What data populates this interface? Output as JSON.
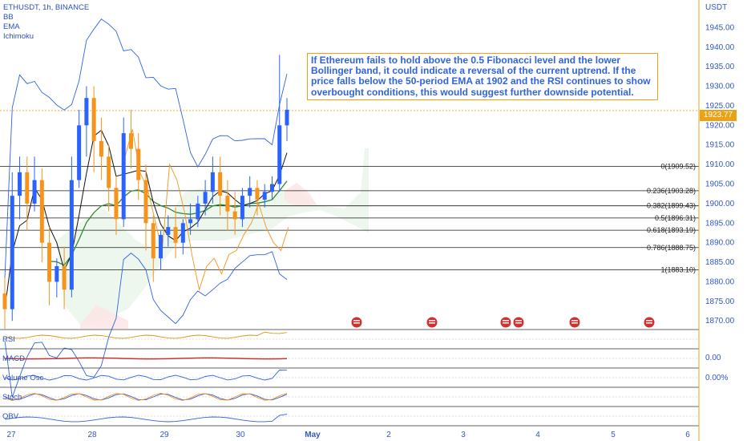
{
  "header": {
    "symbol": "ETHUSDT, 1h, BINANCE",
    "indicators": [
      "BB",
      "EMA",
      "Ichimoku"
    ]
  },
  "annotation": {
    "text": "If Ethereum fails to hold above the 0.5 Fibonacci level and the lower Bollinger band, it could indicate a reversal of the current uptrend. If the price falls below the 50-period EMA at 1902 and the RSI continues to show overbought conditions, this would suggest further downside potential."
  },
  "price_axis": {
    "unit": "USDT",
    "current_price": "1923.77"
  },
  "panes": {
    "rsi": "RSI",
    "macd": "MACD",
    "volume_osc": "Volume Osc",
    "stoch": "Stoch",
    "obv": "OBV"
  },
  "pane_values": {
    "macd": "0.00",
    "volume_osc": "0.00%"
  },
  "colors": {
    "up_candle": "#2962ff",
    "down_candle": "#f7931a",
    "fib_line": "#1a1a1a",
    "bollinger": "#2f63e0",
    "ema": "#2e8b2e",
    "ichimoku_conversion": "#111111",
    "ichimoku_lagging": "#f7931a",
    "accent": "#e8a317",
    "event_icon": "#d32f2f"
  },
  "chart_data": {
    "type": "candlestick",
    "title": "ETHUSDT, 1h, BINANCE",
    "y_axis": {
      "unit": "USDT",
      "range": [
        1868,
        1950
      ],
      "ticks": [
        "1945.00",
        "1940.00",
        "1935.00",
        "1930.00",
        "1925.00",
        "1920.00",
        "1915.00",
        "1910.00",
        "1905.00",
        "1900.00",
        "1895.00",
        "1890.00",
        "1885.00",
        "1880.00",
        "1875.00",
        "1870.00"
      ]
    },
    "x_axis": {
      "ticks": [
        {
          "label": "27",
          "bold": false
        },
        {
          "label": "28",
          "bold": false
        },
        {
          "label": "29",
          "bold": false
        },
        {
          "label": "30",
          "bold": false
        },
        {
          "label": "May",
          "bold": true
        },
        {
          "label": "2",
          "bold": false
        },
        {
          "label": "3",
          "bold": false
        },
        {
          "label": "4",
          "bold": false
        },
        {
          "label": "5",
          "bold": false
        },
        {
          "label": "6",
          "bold": false
        }
      ]
    },
    "fibonacci_levels": [
      {
        "label": "0(1909.52)",
        "value": 1909.52
      },
      {
        "label": "0.236(1903.28)",
        "value": 1903.28
      },
      {
        "label": "0.382(1899.43)",
        "value": 1899.43
      },
      {
        "label": "0.5(1896.31)",
        "value": 1896.31
      },
      {
        "label": "0.618(1893.19)",
        "value": 1893.19
      },
      {
        "label": "0.786(1888.75)",
        "value": 1888.75
      },
      {
        "label": "1(1883.10)",
        "value": 1883.1
      }
    ],
    "current_price": 1923.77,
    "candles": [
      {
        "o": 1877,
        "h": 1881,
        "c": 1873,
        "l": 1868
      },
      {
        "o": 1873,
        "h": 1908,
        "c": 1902,
        "l": 1870
      },
      {
        "o": 1902,
        "h": 1912,
        "c": 1908,
        "l": 1896
      },
      {
        "o": 1908,
        "h": 1912,
        "c": 1900,
        "l": 1893
      },
      {
        "o": 1900,
        "h": 1912,
        "c": 1906,
        "l": 1898
      },
      {
        "o": 1906,
        "h": 1909,
        "c": 1890,
        "l": 1885
      },
      {
        "o": 1890,
        "h": 1894,
        "c": 1880,
        "l": 1874
      },
      {
        "o": 1880,
        "h": 1886,
        "c": 1884,
        "l": 1876
      },
      {
        "o": 1884,
        "h": 1889,
        "c": 1878,
        "l": 1873
      },
      {
        "o": 1878,
        "h": 1912,
        "c": 1906,
        "l": 1876
      },
      {
        "o": 1906,
        "h": 1924,
        "c": 1920,
        "l": 1904
      },
      {
        "o": 1920,
        "h": 1930,
        "c": 1927,
        "l": 1912
      },
      {
        "o": 1927,
        "h": 1930,
        "c": 1916,
        "l": 1908
      },
      {
        "o": 1916,
        "h": 1922,
        "c": 1912,
        "l": 1906
      },
      {
        "o": 1912,
        "h": 1915,
        "c": 1904,
        "l": 1898
      },
      {
        "o": 1904,
        "h": 1907,
        "c": 1896,
        "l": 1892
      },
      {
        "o": 1896,
        "h": 1922,
        "c": 1918,
        "l": 1894
      },
      {
        "o": 1918,
        "h": 1924,
        "c": 1914,
        "l": 1909
      },
      {
        "o": 1914,
        "h": 1918,
        "c": 1906,
        "l": 1901
      },
      {
        "o": 1906,
        "h": 1910,
        "c": 1895,
        "l": 1888
      },
      {
        "o": 1895,
        "h": 1897,
        "c": 1886,
        "l": 1880
      },
      {
        "o": 1886,
        "h": 1893,
        "c": 1892,
        "l": 1883
      },
      {
        "o": 1892,
        "h": 1897,
        "c": 1894,
        "l": 1889
      },
      {
        "o": 1894,
        "h": 1899,
        "c": 1890,
        "l": 1886
      },
      {
        "o": 1890,
        "h": 1896,
        "c": 1895,
        "l": 1887
      },
      {
        "o": 1895,
        "h": 1900,
        "c": 1896,
        "l": 1892
      },
      {
        "o": 1896,
        "h": 1902,
        "c": 1900,
        "l": 1894
      },
      {
        "o": 1900,
        "h": 1906,
        "c": 1903,
        "l": 1897
      },
      {
        "o": 1903,
        "h": 1912,
        "c": 1908,
        "l": 1900
      },
      {
        "o": 1908,
        "h": 1912,
        "c": 1902,
        "l": 1897
      },
      {
        "o": 1902,
        "h": 1906,
        "c": 1898,
        "l": 1893
      },
      {
        "o": 1898,
        "h": 1903,
        "c": 1896,
        "l": 1892
      },
      {
        "o": 1896,
        "h": 1904,
        "c": 1902,
        "l": 1894
      },
      {
        "o": 1902,
        "h": 1907,
        "c": 1904,
        "l": 1899
      },
      {
        "o": 1904,
        "h": 1906,
        "c": 1901,
        "l": 1897
      },
      {
        "o": 1901,
        "h": 1905,
        "c": 1903,
        "l": 1899
      },
      {
        "o": 1903,
        "h": 1907,
        "c": 1905,
        "l": 1901
      },
      {
        "o": 1905,
        "h": 1938,
        "c": 1920,
        "l": 1903
      },
      {
        "o": 1920,
        "h": 1927,
        "c": 1924,
        "l": 1916
      }
    ]
  }
}
